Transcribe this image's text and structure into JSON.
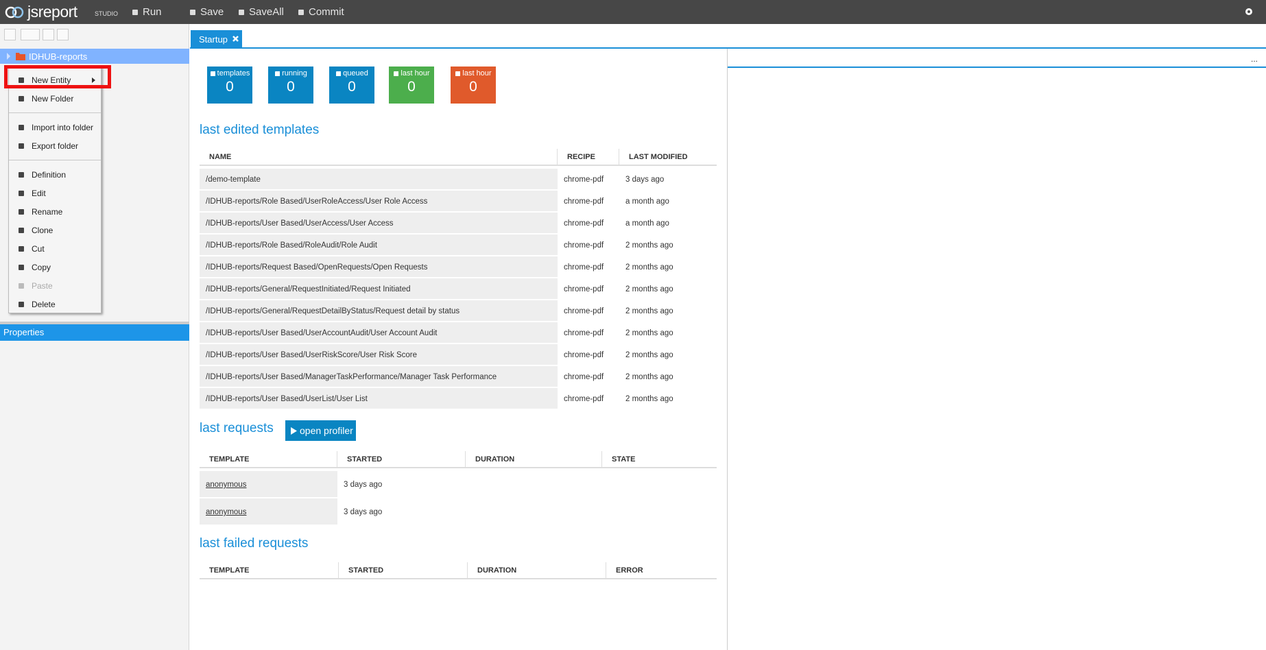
{
  "topbar": {
    "logo": "jsreport",
    "logo_sub": "STUDIO",
    "menu": [
      "Run",
      "Save",
      "SaveAll",
      "Commit"
    ]
  },
  "tree": {
    "root": "IDHUB-reports"
  },
  "context_menu": {
    "groups": [
      [
        {
          "label": "New Entity",
          "submenu": true
        },
        {
          "label": "New Folder"
        }
      ],
      [
        {
          "label": "Import into folder"
        },
        {
          "label": "Export folder"
        }
      ],
      [
        {
          "label": "Definition"
        },
        {
          "label": "Edit"
        },
        {
          "label": "Rename"
        },
        {
          "label": "Clone"
        },
        {
          "label": "Cut"
        },
        {
          "label": "Copy"
        },
        {
          "label": "Paste",
          "disabled": true
        },
        {
          "label": "Delete"
        }
      ]
    ]
  },
  "properties_panel": {
    "title": "Properties"
  },
  "tabs": [
    "Startup"
  ],
  "right_pane": {
    "menu": "..."
  },
  "stats": [
    {
      "label": "templates",
      "value": 0,
      "color": "#0a85c2"
    },
    {
      "label": "running",
      "value": 0,
      "color": "#0a85c2"
    },
    {
      "label": "queued",
      "value": 0,
      "color": "#0a85c2"
    },
    {
      "label": "last hour",
      "value": 0,
      "color": "#4cae4c"
    },
    {
      "label": "last hour",
      "value": 0,
      "color": "#e05a2b"
    }
  ],
  "last_edited_templates": {
    "title": "last edited templates",
    "columns": [
      "NAME",
      "RECIPE",
      "LAST MODIFIED"
    ],
    "rows": [
      [
        "/demo-template",
        "chrome-pdf",
        "3 days ago"
      ],
      [
        "/IDHUB-reports/Role Based/UserRoleAccess/User Role Access",
        "chrome-pdf",
        "a month ago"
      ],
      [
        "/IDHUB-reports/User Based/UserAccess/User Access",
        "chrome-pdf",
        "a month ago"
      ],
      [
        "/IDHUB-reports/Role Based/RoleAudit/Role Audit",
        "chrome-pdf",
        "2 months ago"
      ],
      [
        "/IDHUB-reports/Request Based/OpenRequests/Open Requests",
        "chrome-pdf",
        "2 months ago"
      ],
      [
        "/IDHUB-reports/General/RequestInitiated/Request Initiated",
        "chrome-pdf",
        "2 months ago"
      ],
      [
        "/IDHUB-reports/General/RequestDetailByStatus/Request detail by status",
        "chrome-pdf",
        "2 months ago"
      ],
      [
        "/IDHUB-reports/User Based/UserAccountAudit/User Account Audit",
        "chrome-pdf",
        "2 months ago"
      ],
      [
        "/IDHUB-reports/User Based/UserRiskScore/User Risk Score",
        "chrome-pdf",
        "2 months ago"
      ],
      [
        "/IDHUB-reports/User Based/ManagerTaskPerformance/Manager Task Performance",
        "chrome-pdf",
        "2 months ago"
      ],
      [
        "/IDHUB-reports/User Based/UserList/User List",
        "chrome-pdf",
        "2 months ago"
      ]
    ]
  },
  "last_requests": {
    "title": "last requests",
    "button": "open profiler",
    "columns": [
      "TEMPLATE",
      "STARTED",
      "DURATION",
      "STATE"
    ],
    "rows": [
      [
        "anonymous",
        "3 days ago"
      ],
      [
        "anonymous",
        "3 days ago"
      ]
    ]
  },
  "last_failed_requests": {
    "title": "last failed requests",
    "columns": [
      "TEMPLATE",
      "STARTED",
      "DURATION",
      "ERROR"
    ]
  }
}
